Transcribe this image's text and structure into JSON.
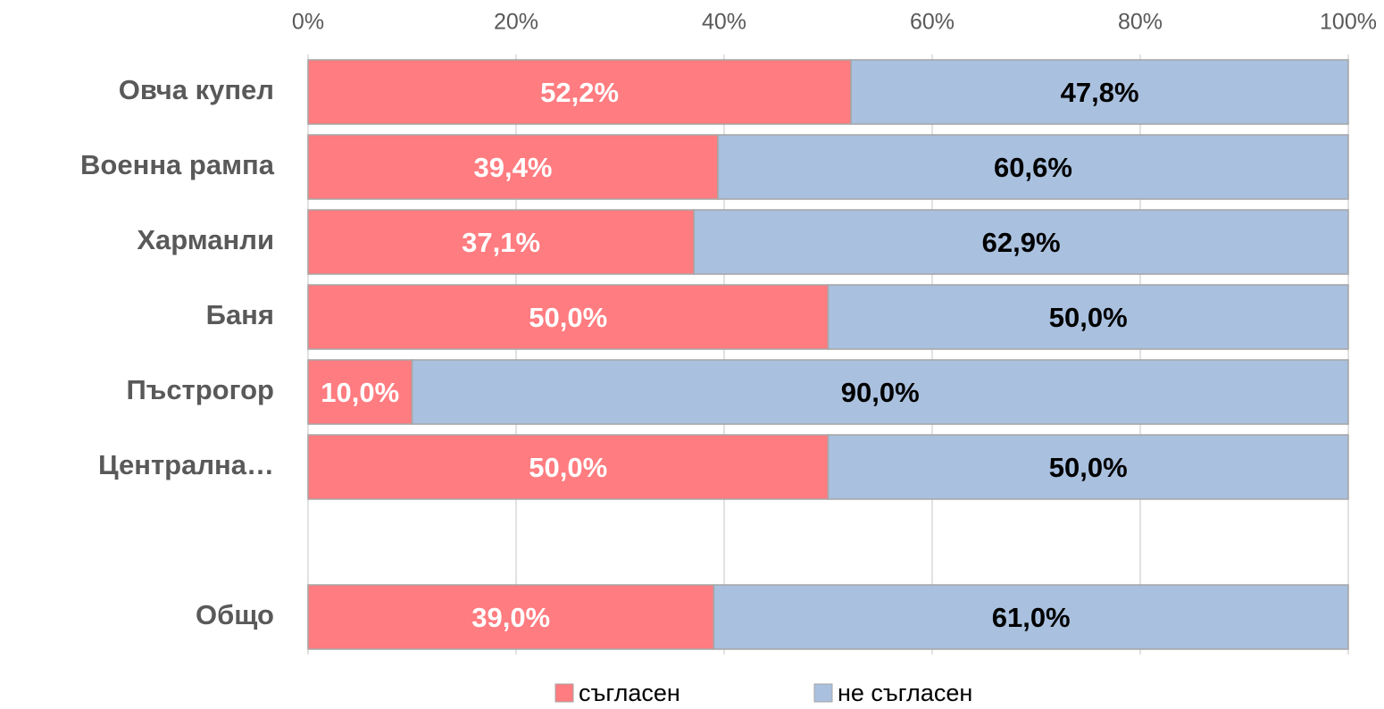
{
  "chart_data": {
    "type": "stacked_bar_horizontal",
    "categories": [
      "Овча купел",
      "Военна рампа",
      "Харманли",
      "Баня",
      "Пъстрогор",
      "Централна…",
      null,
      "Общо"
    ],
    "series": [
      {
        "name": "съгласен",
        "color": "#ff7c80",
        "label_color": "#ffffff",
        "values": [
          52.2,
          39.4,
          37.1,
          50.0,
          10.0,
          50.0,
          null,
          39.0
        ],
        "value_labels": [
          "52,2%",
          "39,4%",
          "37,1%",
          "50,0%",
          "10,0%",
          "50,0%",
          null,
          "39,0%"
        ]
      },
      {
        "name": "не съгласен",
        "color": "#a9c0de",
        "label_color": "#000000",
        "values": [
          47.8,
          60.6,
          62.9,
          50.0,
          90.0,
          50.0,
          null,
          61.0
        ],
        "value_labels": [
          "47,8%",
          "60,6%",
          "62,9%",
          "50,0%",
          "90,0%",
          "50,0%",
          null,
          "61,0%"
        ]
      }
    ],
    "xlim": [
      0,
      100
    ],
    "xticks": [
      {
        "value": 0,
        "label": "0%"
      },
      {
        "value": 20,
        "label": "20%"
      },
      {
        "value": 40,
        "label": "40%"
      },
      {
        "value": 60,
        "label": "60%"
      },
      {
        "value": 80,
        "label": "80%"
      },
      {
        "value": 100,
        "label": "100%"
      }
    ],
    "grid": true,
    "legend": "bottom"
  }
}
